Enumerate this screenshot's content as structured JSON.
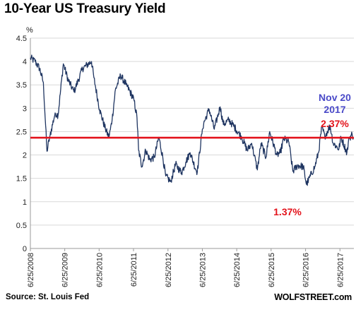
{
  "header": {
    "title": "10-Year US Treasury Yield"
  },
  "footer": {
    "source": "Source: St. Louis Fed",
    "brand": "WOLFSTREET.com"
  },
  "chart_data": {
    "type": "line",
    "title": "10-Year US Treasury Yield",
    "ylabel": "%",
    "xlabel": "",
    "ylim": [
      0,
      4.5
    ],
    "xlim": [
      "2008-06-25",
      "2017-11-20"
    ],
    "grid": "horizontal",
    "yticks": [
      0,
      0.5,
      1,
      1.5,
      2,
      2.5,
      3,
      3.5,
      4,
      4.5
    ],
    "ytick_labels": [
      "0",
      "0.5",
      "1",
      "1.5",
      "2",
      "2.5",
      "3",
      "3.5",
      "4",
      "4.5"
    ],
    "xticks": [
      "2008-06-25",
      "2009-06-25",
      "2010-06-25",
      "2011-06-25",
      "2012-06-25",
      "2013-06-25",
      "2014-06-25",
      "2015-06-25",
      "2016-06-25",
      "2017-06-25"
    ],
    "xtick_labels": [
      "6/25/2008",
      "6/25/2009",
      "6/25/2010",
      "6/25/2011",
      "6/25/2012",
      "6/25/2013",
      "6/25/2014",
      "6/25/2015",
      "6/25/2016",
      "6/25/2017"
    ],
    "series": [
      {
        "color": "#1f3561",
        "x": [
          "2008-06-25",
          "2008-08-15",
          "2008-10-01",
          "2008-11-10",
          "2008-12-18",
          "2009-01-20",
          "2009-03-15",
          "2009-04-15",
          "2009-06-10",
          "2009-08-01",
          "2009-10-01",
          "2009-12-31",
          "2010-04-05",
          "2010-05-01",
          "2010-06-30",
          "2010-08-31",
          "2010-10-08",
          "2010-11-10",
          "2010-12-15",
          "2011-02-08",
          "2011-04-10",
          "2011-06-28",
          "2011-08-01",
          "2011-08-18",
          "2011-09-22",
          "2011-11-01",
          "2011-12-15",
          "2012-02-01",
          "2012-03-20",
          "2012-05-01",
          "2012-06-01",
          "2012-07-24",
          "2012-09-14",
          "2012-11-16",
          "2013-01-01",
          "2013-02-15",
          "2013-04-15",
          "2013-05-02",
          "2013-06-25",
          "2013-07-10",
          "2013-09-05",
          "2013-10-30",
          "2013-12-31",
          "2014-02-03",
          "2014-04-01",
          "2014-06-01",
          "2014-08-15",
          "2014-10-15",
          "2014-12-01",
          "2015-01-30",
          "2015-03-10",
          "2015-05-01",
          "2015-06-10",
          "2015-08-24",
          "2015-10-01",
          "2015-11-06",
          "2015-12-31",
          "2016-02-11",
          "2016-04-01",
          "2016-06-01",
          "2016-07-05",
          "2016-08-15",
          "2016-10-01",
          "2016-11-09",
          "2016-12-15",
          "2017-01-15",
          "2017-03-13",
          "2017-04-15",
          "2017-06-14",
          "2017-07-07",
          "2017-09-07",
          "2017-10-01",
          "2017-11-01",
          "2017-11-20"
        ],
        "y": [
          4.08,
          4.0,
          3.85,
          3.55,
          2.08,
          2.42,
          2.9,
          2.85,
          3.95,
          3.6,
          3.35,
          3.85,
          4.0,
          3.65,
          2.97,
          2.55,
          2.38,
          2.75,
          3.4,
          3.7,
          3.5,
          3.2,
          2.8,
          2.1,
          1.75,
          2.1,
          1.9,
          1.95,
          2.38,
          1.95,
          1.55,
          1.43,
          1.8,
          1.62,
          1.85,
          2.05,
          1.7,
          1.63,
          2.55,
          2.68,
          2.98,
          2.55,
          3.03,
          2.65,
          2.75,
          2.6,
          2.38,
          2.1,
          2.25,
          1.68,
          2.25,
          1.95,
          2.5,
          2.0,
          2.05,
          2.35,
          2.27,
          1.65,
          1.78,
          1.75,
          1.37,
          1.55,
          1.75,
          2.05,
          2.6,
          2.4,
          2.62,
          2.25,
          2.13,
          2.38,
          2.05,
          2.35,
          2.45,
          2.37
        ]
      }
    ],
    "reference_line": {
      "y": 2.37,
      "color": "#e3131b"
    },
    "annotations": [
      {
        "text": "Nov 20",
        "color": "#4a4ac8"
      },
      {
        "text": "2017",
        "color": "#4a4ac8"
      },
      {
        "text": "2.37%",
        "color": "#e3131b"
      },
      {
        "text": "1.37%",
        "color": "#e3131b"
      }
    ]
  }
}
